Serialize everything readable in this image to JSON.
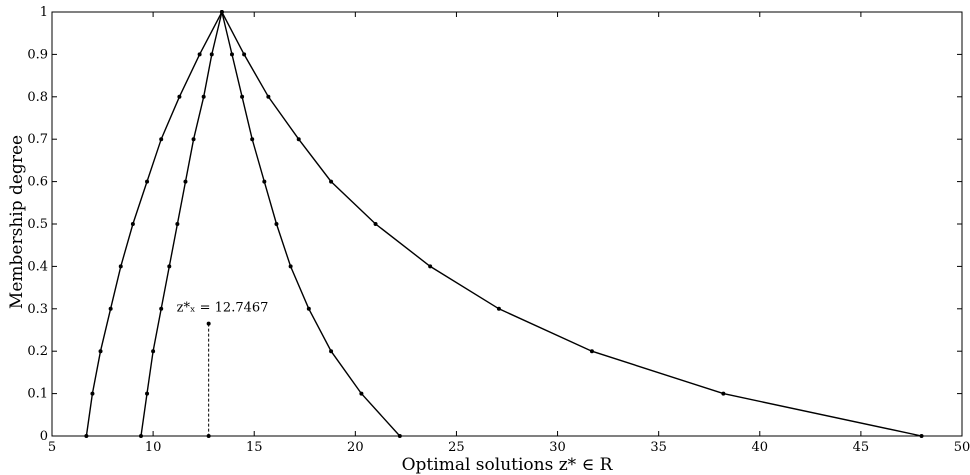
{
  "chart_data": {
    "type": "line",
    "title": "",
    "xlabel": "Optimal solutions z* ∈ R",
    "ylabel": "Membership degree",
    "xlim": [
      5,
      50
    ],
    "ylim": [
      0,
      1
    ],
    "xticks": [
      5,
      10,
      15,
      20,
      25,
      30,
      35,
      40,
      45,
      50
    ],
    "yticks": [
      0,
      0.1,
      0.2,
      0.3,
      0.4,
      0.5,
      0.6,
      0.7,
      0.8,
      0.9,
      1
    ],
    "grid": false,
    "series": [
      {
        "points": [
          [
            6.7,
            0
          ],
          [
            7.0,
            0.1
          ],
          [
            7.4,
            0.2
          ],
          [
            7.9,
            0.3
          ],
          [
            8.4,
            0.4
          ],
          [
            9.0,
            0.5
          ],
          [
            9.7,
            0.6
          ],
          [
            10.4,
            0.7
          ],
          [
            11.3,
            0.8
          ],
          [
            12.3,
            0.9
          ],
          [
            13.4,
            1.0
          ],
          [
            14.5,
            0.9
          ],
          [
            15.7,
            0.8
          ],
          [
            17.2,
            0.7
          ],
          [
            18.8,
            0.6
          ],
          [
            21.0,
            0.5
          ],
          [
            23.7,
            0.4
          ],
          [
            27.1,
            0.3
          ],
          [
            31.7,
            0.2
          ],
          [
            38.2,
            0.1
          ],
          [
            48.0,
            0
          ]
        ]
      },
      {
        "points": [
          [
            9.4,
            0
          ],
          [
            9.7,
            0.1
          ],
          [
            10.0,
            0.2
          ],
          [
            10.4,
            0.3
          ],
          [
            10.8,
            0.4
          ],
          [
            11.2,
            0.5
          ],
          [
            11.6,
            0.6
          ],
          [
            12.0,
            0.7
          ],
          [
            12.5,
            0.8
          ],
          [
            12.9,
            0.9
          ],
          [
            13.4,
            1.0
          ],
          [
            13.9,
            0.9
          ],
          [
            14.4,
            0.8
          ],
          [
            14.9,
            0.7
          ],
          [
            15.5,
            0.6
          ],
          [
            16.1,
            0.5
          ],
          [
            16.8,
            0.4
          ],
          [
            17.7,
            0.3
          ],
          [
            18.8,
            0.2
          ],
          [
            20.3,
            0.1
          ],
          [
            22.2,
            0
          ]
        ]
      }
    ],
    "annotations": [
      {
        "x": 12.7467,
        "y": 0.265,
        "text": "z*ₓ = 12.7467",
        "style": "dashed-stem"
      }
    ]
  }
}
